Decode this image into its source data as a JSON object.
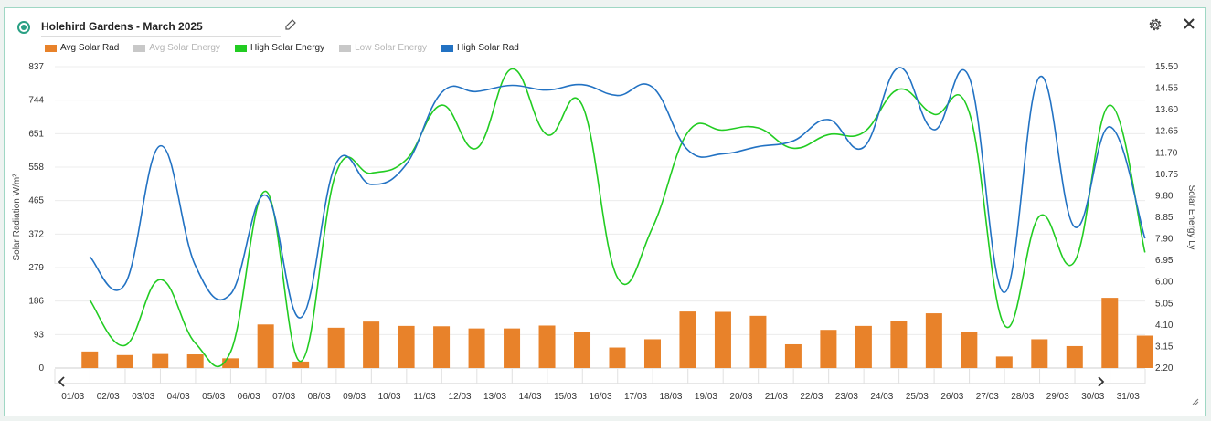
{
  "header": {
    "title": "Holehird Gardens - March 2025"
  },
  "colors": {
    "avg_solar_rad": "#e8822a",
    "avg_solar_energy": "#c8c8c8",
    "high_solar_energy": "#22cc22",
    "low_solar_energy": "#c8c8c8",
    "high_solar_rad": "#2272c3"
  },
  "legend": [
    {
      "label": "Avg Solar Rad",
      "color": "#e8822a",
      "active": true
    },
    {
      "label": "Avg Solar Energy",
      "color": "#c8c8c8",
      "active": false
    },
    {
      "label": "High Solar Energy",
      "color": "#22cc22",
      "active": true
    },
    {
      "label": "Low Solar Energy",
      "color": "#c8c8c8",
      "active": false
    },
    {
      "label": "High Solar Rad",
      "color": "#2272c3",
      "active": true
    }
  ],
  "icons": {
    "status": "status-icon",
    "edit": "pencil-icon",
    "settings": "gear-icon",
    "close": "close-icon",
    "prev": "chevron-left-icon",
    "next": "chevron-right-icon"
  },
  "chart_data": {
    "type": "bar",
    "categories": [
      "01/03",
      "02/03",
      "03/03",
      "04/03",
      "05/03",
      "06/03",
      "07/03",
      "08/03",
      "09/03",
      "10/03",
      "11/03",
      "12/03",
      "13/03",
      "14/03",
      "15/03",
      "16/03",
      "17/03",
      "18/03",
      "19/03",
      "20/03",
      "21/03",
      "22/03",
      "23/03",
      "24/03",
      "25/03",
      "26/03",
      "27/03",
      "28/03",
      "29/03",
      "30/03",
      "31/03"
    ],
    "y_left": {
      "label": "Solar Radiation W/m²",
      "ticks": [
        "0",
        "93",
        "186",
        "279",
        "372",
        "465",
        "558",
        "651",
        "744",
        "837"
      ],
      "ylim": [
        0,
        837
      ]
    },
    "y_right": {
      "label": "Solar Energy Ly",
      "ticks": [
        "2.20",
        "3.15",
        "4.10",
        "5.05",
        "6.00",
        "6.95",
        "7.90",
        "8.85",
        "9.80",
        "10.75",
        "11.70",
        "12.65",
        "13.60",
        "14.55",
        "15.50"
      ],
      "ylim": [
        2.2,
        15.5
      ]
    },
    "series": [
      {
        "name": "Avg Solar Rad",
        "type": "bar",
        "axis": "left",
        "values": [
          46,
          36,
          39,
          38,
          27,
          121,
          18,
          112,
          129,
          117,
          116,
          110,
          110,
          118,
          101,
          57,
          80,
          157,
          156,
          145,
          66,
          106,
          117,
          131,
          152,
          101,
          32,
          80,
          61,
          195,
          90
        ]
      },
      {
        "name": "High Solar Energy",
        "type": "line",
        "axis": "right",
        "values": [
          5.2,
          3.2,
          6.1,
          3.3,
          2.9,
          10.0,
          2.5,
          10.8,
          10.8,
          11.4,
          13.8,
          11.9,
          15.4,
          12.5,
          13.8,
          6.2,
          8.4,
          12.6,
          12.7,
          12.8,
          11.9,
          12.5,
          12.6,
          14.5,
          13.4,
          13.5,
          4.1,
          8.9,
          6.9,
          13.8,
          7.3
        ]
      },
      {
        "name": "High Solar Rad",
        "type": "line",
        "axis": "left",
        "values": [
          309,
          233,
          617,
          285,
          205,
          480,
          140,
          568,
          510,
          566,
          765,
          768,
          785,
          772,
          787,
          757,
          780,
          606,
          595,
          615,
          631,
          690,
          613,
          834,
          662,
          808,
          210,
          808,
          392,
          670,
          360
        ]
      }
    ]
  }
}
